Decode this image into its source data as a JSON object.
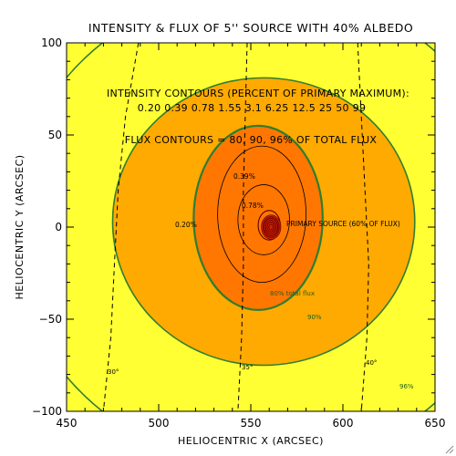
{
  "chart_data": {
    "type": "contour",
    "title": "INTENSITY & FLUX OF 5'' SOURCE WITH 40% ALBEDO",
    "xlabel": "HELIOCENTRIC X (ARCSEC)",
    "ylabel": "HELIOCENTRIC Y (ARCSEC)",
    "xlim": [
      450,
      650
    ],
    "ylim": [
      -100,
      100
    ],
    "xticks": [
      450,
      500,
      550,
      600,
      650
    ],
    "yticks": [
      -100,
      -50,
      0,
      50,
      100
    ],
    "xtick_labels": [
      "450",
      "500",
      "550",
      "600",
      "650"
    ],
    "ytick_labels": [
      "−100",
      "−50",
      "0",
      "50",
      "100"
    ],
    "colors": {
      "background": "#FFFF33",
      "flux_mid": "#FFAA00",
      "flux_inner": "#FF7700",
      "contour_green": "#2E7D32",
      "source": "#CC2200",
      "line": "#000000"
    },
    "annotations": {
      "intensity_header": "INTENSITY CONTOURS (PERCENT OF PRIMARY MAXIMUM):",
      "intensity_levels": "0.20  0.39  0.78  1.55  3.1  6.25  12.5  25  50  99",
      "flux_header": "FLUX CONTOURS = 80, 90, 96% OF TOTAL FLUX",
      "primary_source": "PRIMARY SOURCE (60% OF FLUX)",
      "label_020": "0.20%",
      "label_039": "0.39%",
      "label_078": "0.78%",
      "flux80": "80% total flux",
      "flux90": "90%",
      "flux96": "96%",
      "lon30": "30°",
      "lon35": "35°",
      "lon40": "40°"
    },
    "source_center": {
      "x": 561,
      "y": 0
    },
    "flux_contours": [
      {
        "level": 96,
        "center": [
          557,
          0
        ],
        "rx": 137,
        "ry": 130
      },
      {
        "level": 90,
        "center": [
          557,
          3
        ],
        "rx": 82,
        "ry": 78
      },
      {
        "level": 80,
        "center": [
          554,
          5
        ],
        "rx": 35,
        "ry": 50
      }
    ],
    "intensity_contours": [
      {
        "level": 0.2,
        "center": [
          554,
          5
        ],
        "rx": 35,
        "ry": 50
      },
      {
        "level": 0.39,
        "center": [
          556,
          7
        ],
        "rx": 24,
        "ry": 37
      },
      {
        "level": 0.78,
        "center": [
          557,
          4
        ],
        "rx": 14,
        "ry": 19
      },
      {
        "level": 1.55,
        "center": [
          560,
          1
        ],
        "rx": 6,
        "ry": 8
      },
      {
        "level": 3.1,
        "center": [
          561,
          0
        ],
        "rx": 5.2,
        "ry": 6.5
      },
      {
        "level": 6.25,
        "center": [
          561,
          0
        ],
        "rx": 4.4,
        "ry": 5.6
      },
      {
        "level": 12.5,
        "center": [
          561,
          0
        ],
        "rx": 3.7,
        "ry": 4.7
      },
      {
        "level": 25,
        "center": [
          561,
          0
        ],
        "rx": 2.9,
        "ry": 3.8
      },
      {
        "level": 50,
        "center": [
          561,
          0
        ],
        "rx": 2.1,
        "ry": 2.8
      },
      {
        "level": 99,
        "center": [
          561,
          0
        ],
        "rx": 1.2,
        "ry": 1.6
      }
    ],
    "longitude_lines": [
      {
        "label": "30°",
        "points": [
          [
            489,
            100
          ],
          [
            482,
            60
          ],
          [
            478,
            20
          ],
          [
            476,
            -20
          ],
          [
            474,
            -60
          ],
          [
            470,
            -100
          ]
        ]
      },
      {
        "label": "35°",
        "points": [
          [
            548,
            100
          ],
          [
            547,
            60
          ],
          [
            546,
            20
          ],
          [
            546,
            -20
          ],
          [
            545,
            -60
          ],
          [
            543,
            -100
          ]
        ]
      },
      {
        "label": "40°",
        "points": [
          [
            608,
            100
          ],
          [
            610,
            60
          ],
          [
            612,
            20
          ],
          [
            614,
            -20
          ],
          [
            613,
            -60
          ],
          [
            610,
            -100
          ]
        ]
      }
    ]
  }
}
